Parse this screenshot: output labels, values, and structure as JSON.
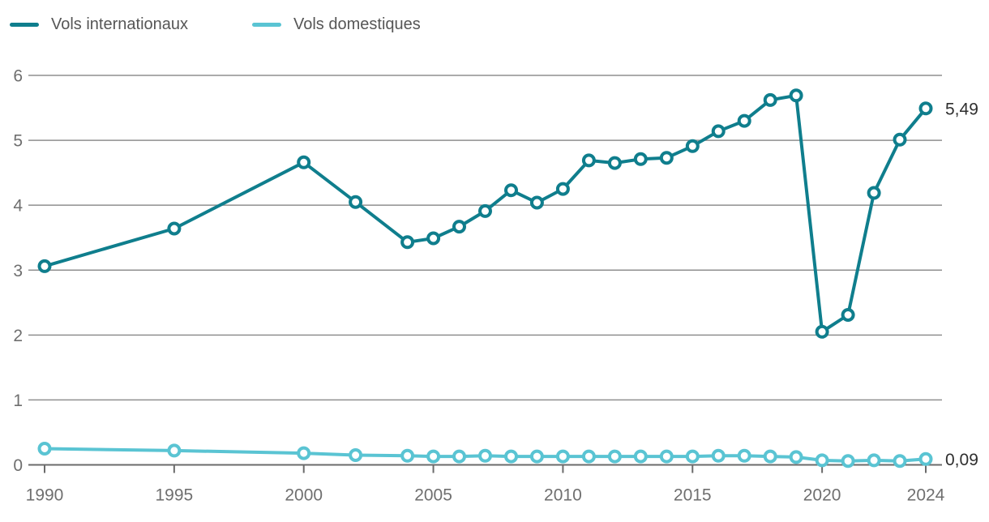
{
  "legend": {
    "items": [
      {
        "label": "Vols internationaux",
        "color": "#0f7e8d"
      },
      {
        "label": "Vols domestiques",
        "color": "#5ac4d3"
      }
    ]
  },
  "chart_data": {
    "type": "line",
    "title": "",
    "xlabel": "",
    "ylabel": "",
    "x": [
      1990,
      1995,
      2000,
      2002,
      2004,
      2005,
      2006,
      2007,
      2008,
      2009,
      2010,
      2011,
      2012,
      2013,
      2014,
      2015,
      2016,
      2017,
      2018,
      2019,
      2020,
      2021,
      2022,
      2023,
      2024
    ],
    "series": [
      {
        "name": "Vols internationaux",
        "color": "#0f7e8d",
        "end_label": "5,49",
        "values": [
          3.06,
          3.64,
          4.66,
          4.05,
          3.43,
          3.49,
          3.67,
          3.91,
          4.23,
          4.04,
          4.25,
          4.69,
          4.65,
          4.71,
          4.73,
          4.91,
          5.14,
          5.3,
          5.62,
          5.69,
          2.05,
          2.31,
          4.19,
          5.01,
          5.49
        ]
      },
      {
        "name": "Vols domestiques",
        "color": "#5ac4d3",
        "end_label": "0,09",
        "values": [
          0.25,
          0.22,
          0.18,
          0.15,
          0.14,
          0.13,
          0.13,
          0.14,
          0.13,
          0.13,
          0.13,
          0.13,
          0.13,
          0.13,
          0.13,
          0.13,
          0.14,
          0.14,
          0.13,
          0.12,
          0.07,
          0.06,
          0.07,
          0.06,
          0.09
        ]
      }
    ],
    "ylim": [
      0,
      6
    ],
    "xlim": [
      1990,
      2024
    ],
    "y_ticks": [
      "0",
      "1",
      "2",
      "3",
      "4",
      "5",
      "6"
    ],
    "x_ticks": [
      "1990",
      "1995",
      "2000",
      "2005",
      "2010",
      "2015",
      "2020",
      "2024"
    ],
    "grid": "horizontal",
    "legend_position": "top-left",
    "marker": "open-circle"
  },
  "colors": {
    "grid_line": "#8f8f8f",
    "axis_line": "#6b6b6b",
    "tick_label": "#6f6f6f",
    "end_label": "#2f2f2f",
    "marker_fill": "#ffffff",
    "background": "#ffffff"
  }
}
